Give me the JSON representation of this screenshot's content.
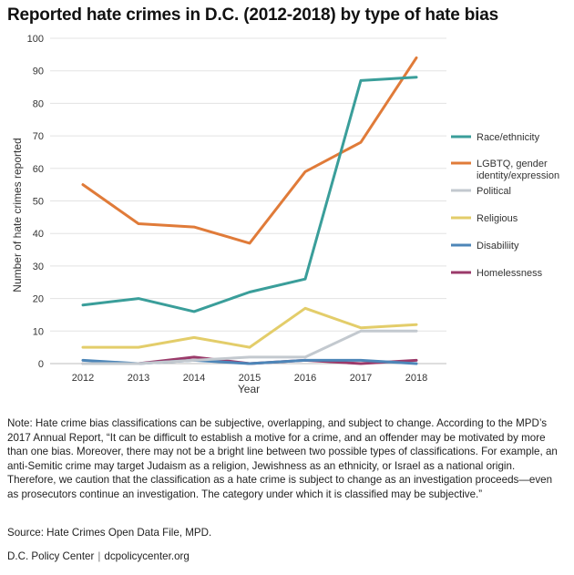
{
  "chart_data": {
    "type": "line",
    "title": "Reported hate crimes in D.C. (2012-2018) by type of hate bias",
    "xlabel": "Year",
    "ylabel": "Number of hate crimes reported",
    "x": [
      2012,
      2013,
      2014,
      2015,
      2016,
      2017,
      2018
    ],
    "ylim": [
      0,
      100
    ],
    "yticks": [
      0,
      10,
      20,
      30,
      40,
      50,
      60,
      70,
      80,
      90,
      100
    ],
    "grid": true,
    "legend_position": "right",
    "series": [
      {
        "name": "Race/ethnicity",
        "color": "#3a9e9a",
        "values": [
          18,
          20,
          16,
          22,
          26,
          87,
          88
        ]
      },
      {
        "name": "LGBTQ, gender identity/expression",
        "color": "#e07b39",
        "values": [
          55,
          43,
          42,
          37,
          59,
          68,
          94
        ]
      },
      {
        "name": "Political",
        "color": "#c3c9cf",
        "values": [
          0,
          0,
          1,
          2,
          2,
          10,
          10
        ]
      },
      {
        "name": "Religious",
        "color": "#e3cd6a",
        "values": [
          5,
          5,
          8,
          5,
          17,
          11,
          12
        ]
      },
      {
        "name": "Disability",
        "color": "#4d86b8",
        "values": [
          1,
          0,
          1,
          0,
          1,
          1,
          0
        ]
      },
      {
        "name": "Homelessness",
        "color": "#9b3a6a",
        "values": [
          0,
          0,
          2,
          0,
          1,
          0,
          1
        ]
      }
    ]
  },
  "legend_labels": [
    [
      "Race/ethnicity"
    ],
    [
      "LGBTQ, gender",
      "identity/expression"
    ],
    [
      "Political"
    ],
    [
      "Religious"
    ],
    [
      "Disabiliity"
    ],
    [
      "Homelessness"
    ]
  ],
  "note": "Note: Hate crime bias classifications can be subjective, overlapping, and subject to change. According to the MPD’s 2017 Annual Report, “It can be difficult to establish a motive for a crime, and an offender may be motivated by more than one bias. Moreover, there may not be a bright line between two possible types of classifications. For example, an anti-Semitic crime may target Judaism as a religion, Jewishness as an ethnicity, or Israel as a national origin. Therefore, we caution that the classification as a hate crime is subject to change as an investigation proceeds—even as prosecutors continue an investigation. The category under which it is classified may be subjective.”",
  "source": "Source: Hate Crimes Open Data File, MPD.",
  "footer": {
    "org": "D.C. Policy Center",
    "separator": "|",
    "url": "dcpolicycenter.org"
  }
}
